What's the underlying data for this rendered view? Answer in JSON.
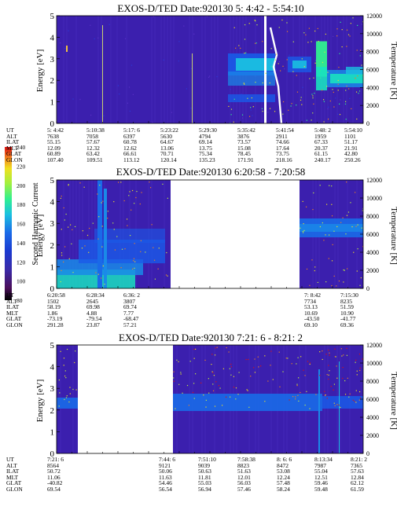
{
  "colorbar": {
    "label": "Second Harmonic Current",
    "ticks": [
      "80",
      "100",
      "120",
      "140",
      "160",
      "180",
      "200",
      "220",
      "240"
    ],
    "colors": [
      "#000000",
      "#3a0a3a",
      "#5a1a7a",
      "#3a2aa8",
      "#1a3ad0",
      "#1a5ae8",
      "#1a8ae8",
      "#1ac0e0",
      "#1ae0c0",
      "#30f090",
      "#70f050",
      "#c0f040",
      "#f0e020",
      "#f0a020",
      "#f05010",
      "#e01010"
    ]
  },
  "chart_data": [
    {
      "type": "heatmap",
      "title": "EXOS-D/TED   Date:920130   5: 4:42 - 5:54:10",
      "ylabel": "Energy [eV]",
      "y2label": "Temperature [K]",
      "ylim": [
        0,
        5
      ],
      "y2lim": [
        0,
        12000
      ],
      "yticks": [
        "0",
        "1",
        "2",
        "3",
        "4",
        "5"
      ],
      "y2ticks": [
        "0",
        "2000",
        "4000",
        "6000",
        "8000",
        "10000",
        "12000"
      ],
      "ephemeris_labels": [
        "UT",
        "ALT",
        "ILAT",
        "MLT",
        "GLAT",
        "GLON"
      ],
      "ephemeris": [
        [
          "5: 4:42",
          "7638",
          "55.15",
          "12.09",
          "60.89",
          "107.40"
        ],
        [
          "5:10:38",
          "7058",
          "57.67",
          "12.32",
          "63.42",
          "109.51"
        ],
        [
          "5:17: 6",
          "6397",
          "60.78",
          "12.62",
          "66.61",
          "113.12"
        ],
        [
          "5:23:22",
          "5630",
          "64.67",
          "13.06",
          "70.71",
          "120.14"
        ],
        [
          "5:29:30",
          "4794",
          "69.14",
          "13.75",
          "75.34",
          "135.23"
        ],
        [
          "5:35:42",
          "3876",
          "73.57",
          "15.08",
          "78.45",
          "171.91"
        ],
        [
          "5:41:54",
          "2911",
          "74.66",
          "17.64",
          "73.75",
          "218.16"
        ],
        [
          "5:48: 2",
          "1959",
          "67.33",
          "20.37",
          "61.15",
          "240.17"
        ],
        [
          "5:54:10",
          "1101",
          "51.17",
          "21.91",
          "42.80",
          "250.26"
        ]
      ]
    },
    {
      "type": "heatmap",
      "title": "EXOS-D/TED   Date:920130   6:20:58 - 7:20:58",
      "ylabel": "Energy [eV]",
      "y2label": "Temperature [K]",
      "ylim": [
        0,
        5
      ],
      "y2lim": [
        0,
        12000
      ],
      "yticks": [
        "0",
        "1",
        "2",
        "3",
        "4",
        "5"
      ],
      "y2ticks": [
        "0",
        "2000",
        "4000",
        "6000",
        "8000",
        "10000",
        "12000"
      ],
      "ephemeris_labels": [
        "UT",
        "ALT",
        "ILAT",
        "MLT",
        "GLAT",
        "GLON"
      ],
      "ephemeris": [
        [
          "6:20:58",
          "1502",
          "58.19",
          "1.86",
          "-73.19",
          "291.28"
        ],
        [
          "6:28:34",
          "2645",
          "69.98",
          "4.88",
          "-79.54",
          "23.87"
        ],
        [
          "6:36: 2",
          "3807",
          "69.74",
          "7.77",
          "-68.47",
          "57.21"
        ],
        [
          "7: 8:42",
          "7734",
          "53.13",
          "10.69",
          "-43.50",
          "69.10"
        ],
        [
          "7:15:30",
          "8235",
          "51.59",
          "10.90",
          "-41.77",
          "69.36"
        ]
      ]
    },
    {
      "type": "heatmap",
      "title": "EXOS-D/TED   Date:920130   7:21: 6 - 8:21: 2",
      "ylabel": "Energy [eV]",
      "y2label": "Temperature [K]",
      "ylim": [
        0,
        5
      ],
      "y2lim": [
        0,
        12000
      ],
      "yticks": [
        "0",
        "1",
        "2",
        "3",
        "4",
        "5"
      ],
      "y2ticks": [
        "0",
        "2000",
        "4000",
        "6000",
        "8000",
        "10000",
        "12000"
      ],
      "ephemeris_labels": [
        "UT",
        "ALT",
        "ILAT",
        "MLT",
        "GLAT",
        "GLON"
      ],
      "ephemeris": [
        [
          "7:21: 6",
          "8564",
          "50.72",
          "11.06",
          "-40.82",
          "69.54"
        ],
        [
          "7:44: 6",
          "9121",
          "50.06",
          "11.63",
          "54.46",
          "56.54"
        ],
        [
          "7:51:10",
          "9039",
          "50.63",
          "11.81",
          "55.03",
          "56.94"
        ],
        [
          "7:58:38",
          "8823",
          "51.63",
          "12.01",
          "56.03",
          "57.46"
        ],
        [
          "8: 6: 6",
          "8472",
          "53.08",
          "12.24",
          "57.48",
          "58.24"
        ],
        [
          "8:13:34",
          "7987",
          "55.04",
          "12.51",
          "59.46",
          "59.48"
        ],
        [
          "8:21: 2",
          "7365",
          "57.63",
          "12.84",
          "62.12",
          "61.59"
        ]
      ]
    }
  ]
}
